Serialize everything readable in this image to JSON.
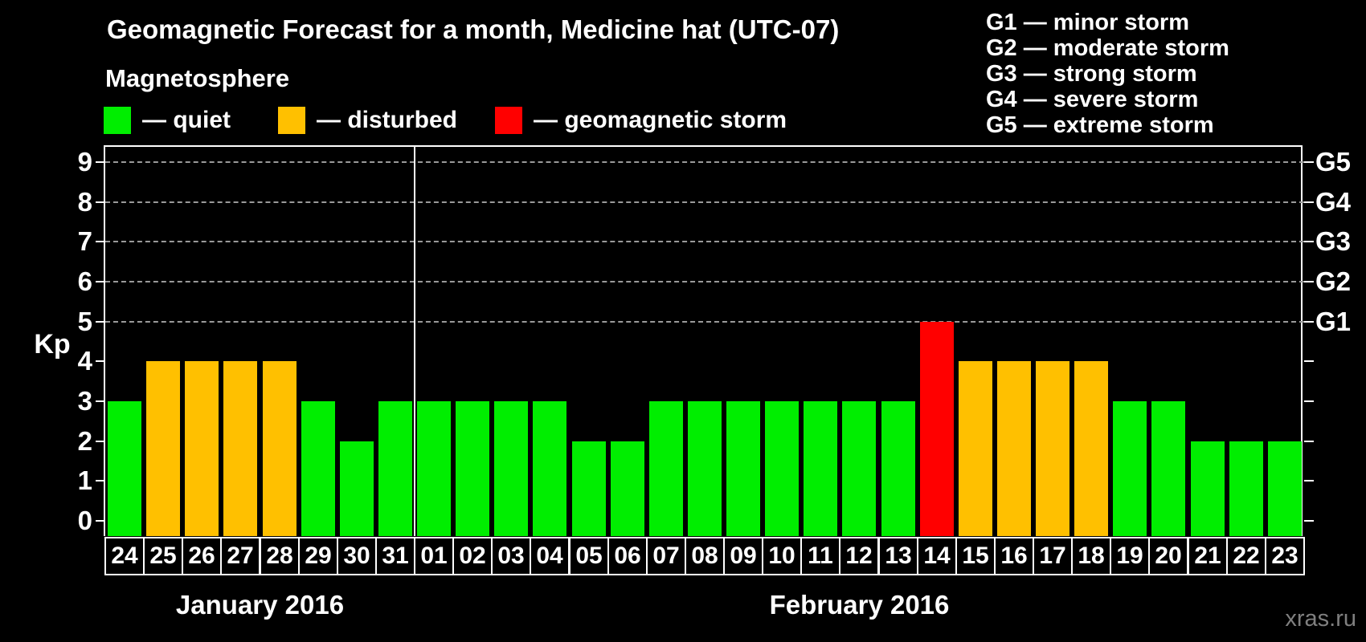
{
  "title": "Geomagnetic Forecast for a month, Medicine hat (UTC-07)",
  "subtitle": "Magnetosphere",
  "legend": {
    "items": [
      {
        "key": "quiet",
        "label": "— quiet",
        "color": "#00ee00"
      },
      {
        "key": "disturbed",
        "label": "— disturbed",
        "color": "#ffc000"
      },
      {
        "key": "storm",
        "label": "— geomagnetic storm",
        "color": "#ff0000"
      }
    ]
  },
  "storm_scale_legend": [
    "G1 — minor storm",
    "G2 — moderate storm",
    "G3 — strong storm",
    "G4 — severe storm",
    "G5 — extreme storm"
  ],
  "watermark": "xras.ru",
  "colors": {
    "quiet": "#00ee00",
    "disturbed": "#ffc000",
    "storm": "#ff0000",
    "grid": "#9a9a9a",
    "axis_text": "#ffffff",
    "watermark": "#7f7f7f"
  },
  "chart_data": {
    "type": "bar",
    "title": "Geomagnetic Forecast for a month, Medicine hat (UTC-07)",
    "ylabel": "Kp",
    "ylim": [
      0,
      9
    ],
    "yticks": [
      0,
      1,
      2,
      3,
      4,
      5,
      6,
      7,
      8,
      9
    ],
    "gridlines_at_kp": [
      5,
      6,
      7,
      8,
      9
    ],
    "grid": "dashed horizontal lines at Kp 5–9 only",
    "legend_position": "top",
    "right_axis": [
      {
        "kp": 5,
        "label": "G1"
      },
      {
        "kp": 6,
        "label": "G2"
      },
      {
        "kp": 7,
        "label": "G3"
      },
      {
        "kp": 8,
        "label": "G4"
      },
      {
        "kp": 9,
        "label": "G5"
      }
    ],
    "months": [
      {
        "label": "January 2016",
        "bars": [
          {
            "day": "24",
            "kp": 3,
            "status": "quiet"
          },
          {
            "day": "25",
            "kp": 4,
            "status": "disturbed"
          },
          {
            "day": "26",
            "kp": 4,
            "status": "disturbed"
          },
          {
            "day": "27",
            "kp": 4,
            "status": "disturbed"
          },
          {
            "day": "28",
            "kp": 4,
            "status": "disturbed"
          },
          {
            "day": "29",
            "kp": 3,
            "status": "quiet"
          },
          {
            "day": "30",
            "kp": 2,
            "status": "quiet"
          },
          {
            "day": "31",
            "kp": 3,
            "status": "quiet"
          }
        ]
      },
      {
        "label": "February 2016",
        "bars": [
          {
            "day": "01",
            "kp": 3,
            "status": "quiet"
          },
          {
            "day": "02",
            "kp": 3,
            "status": "quiet"
          },
          {
            "day": "03",
            "kp": 3,
            "status": "quiet"
          },
          {
            "day": "04",
            "kp": 3,
            "status": "quiet"
          },
          {
            "day": "05",
            "kp": 2,
            "status": "quiet"
          },
          {
            "day": "06",
            "kp": 2,
            "status": "quiet"
          },
          {
            "day": "07",
            "kp": 3,
            "status": "quiet"
          },
          {
            "day": "08",
            "kp": 3,
            "status": "quiet"
          },
          {
            "day": "09",
            "kp": 3,
            "status": "quiet"
          },
          {
            "day": "10",
            "kp": 3,
            "status": "quiet"
          },
          {
            "day": "11",
            "kp": 3,
            "status": "quiet"
          },
          {
            "day": "12",
            "kp": 3,
            "status": "quiet"
          },
          {
            "day": "13",
            "kp": 3,
            "status": "quiet"
          },
          {
            "day": "14",
            "kp": 5,
            "status": "storm"
          },
          {
            "day": "15",
            "kp": 4,
            "status": "disturbed"
          },
          {
            "day": "16",
            "kp": 4,
            "status": "disturbed"
          },
          {
            "day": "17",
            "kp": 4,
            "status": "disturbed"
          },
          {
            "day": "18",
            "kp": 4,
            "status": "disturbed"
          },
          {
            "day": "19",
            "kp": 3,
            "status": "quiet"
          },
          {
            "day": "20",
            "kp": 3,
            "status": "quiet"
          },
          {
            "day": "21",
            "kp": 2,
            "status": "quiet"
          },
          {
            "day": "22",
            "kp": 2,
            "status": "quiet"
          },
          {
            "day": "23",
            "kp": 2,
            "status": "quiet"
          }
        ]
      }
    ]
  }
}
